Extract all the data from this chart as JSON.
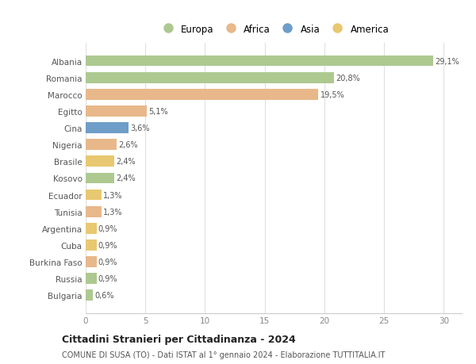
{
  "countries": [
    "Albania",
    "Romania",
    "Marocco",
    "Egitto",
    "Cina",
    "Nigeria",
    "Brasile",
    "Kosovo",
    "Ecuador",
    "Tunisia",
    "Argentina",
    "Cuba",
    "Burkina Faso",
    "Russia",
    "Bulgaria"
  ],
  "values": [
    29.1,
    20.8,
    19.5,
    5.1,
    3.6,
    2.6,
    2.4,
    2.4,
    1.3,
    1.3,
    0.9,
    0.9,
    0.9,
    0.9,
    0.6
  ],
  "labels": [
    "29,1%",
    "20,8%",
    "19,5%",
    "5,1%",
    "3,6%",
    "2,6%",
    "2,4%",
    "2,4%",
    "1,3%",
    "1,3%",
    "0,9%",
    "0,9%",
    "0,9%",
    "0,9%",
    "0,6%"
  ],
  "colors": [
    "#adc990",
    "#adc990",
    "#e8b88a",
    "#e8b88a",
    "#6e9dc8",
    "#e8b88a",
    "#e8c870",
    "#adc990",
    "#e8c870",
    "#e8b88a",
    "#e8c870",
    "#e8c870",
    "#e8b88a",
    "#adc990",
    "#adc990"
  ],
  "legend_labels": [
    "Europa",
    "Africa",
    "Asia",
    "America"
  ],
  "legend_colors": [
    "#adc990",
    "#e8b88a",
    "#6e9dc8",
    "#e8c870"
  ],
  "title": "Cittadini Stranieri per Cittadinanza - 2024",
  "subtitle": "COMUNE DI SUSA (TO) - Dati ISTAT al 1° gennaio 2024 - Elaborazione TUTTITALIA.IT",
  "xlim": [
    0,
    31.5
  ],
  "xticks": [
    0,
    5,
    10,
    15,
    20,
    25,
    30
  ],
  "bg_color": "#ffffff",
  "grid_color": "#e0e0e0",
  "bar_height": 0.65
}
